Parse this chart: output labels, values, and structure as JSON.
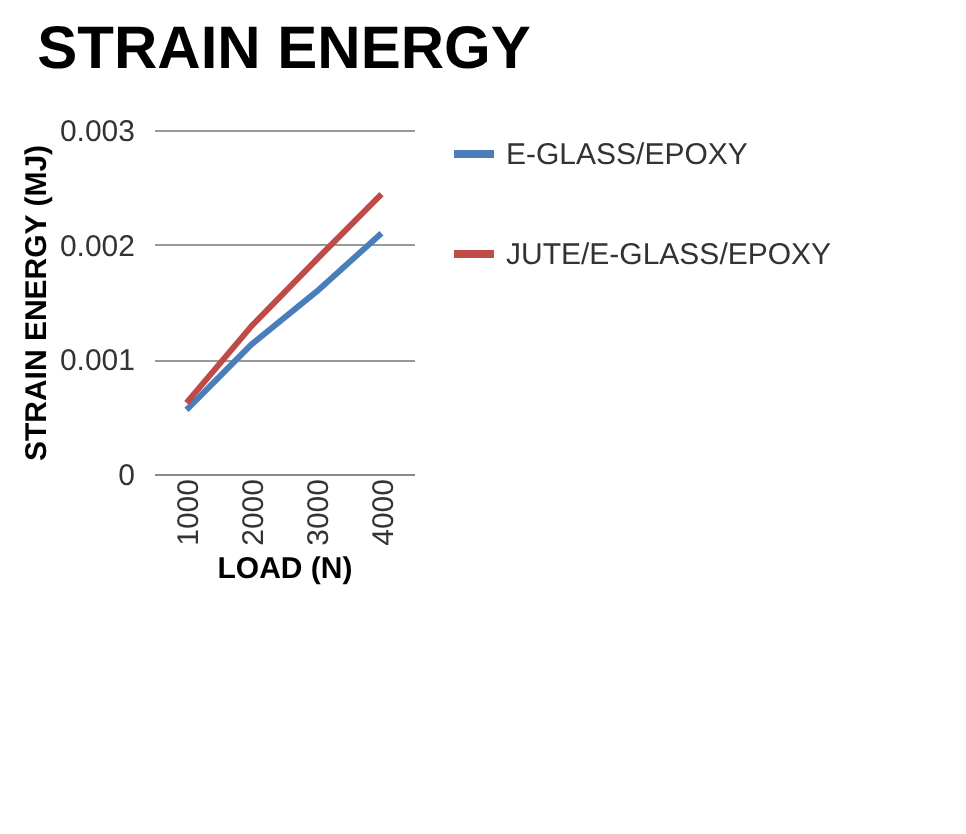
{
  "chart_data": {
    "type": "line",
    "title": "STRAIN ENERGY",
    "xlabel": "LOAD (N)",
    "ylabel": "STRAIN ENERGY (MJ)",
    "categories": [
      "1000",
      "2000",
      "3000",
      "4000"
    ],
    "series": [
      {
        "name": "E-GLASS/EPOXY",
        "color": "#4a7ebb",
        "values": [
          0.00056,
          0.00113,
          0.00159,
          0.0021
        ]
      },
      {
        "name": "JUTE/E-GLASS/EPOXY",
        "color": "#be4b48",
        "values": [
          0.00062,
          0.00129,
          0.00187,
          0.00244
        ]
      }
    ],
    "ylim": [
      0,
      0.003
    ],
    "yticks": [
      0,
      0.001,
      0.002,
      0.003
    ],
    "grid": "y",
    "legend": "right"
  }
}
